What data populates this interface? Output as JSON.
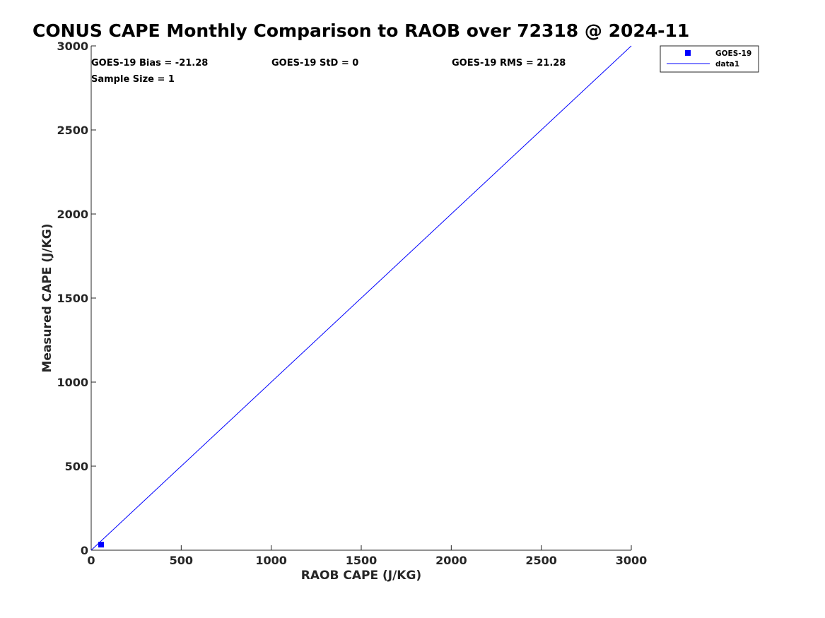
{
  "chart_data": {
    "type": "scatter",
    "title": "CONUS CAPE Monthly Comparison to RAOB over 72318 @ 2024-11",
    "xlabel": "RAOB CAPE (J/KG)",
    "ylabel": "Measured CAPE (J/KG)",
    "xlim": [
      0,
      3000
    ],
    "ylim": [
      0,
      3000
    ],
    "xticks": [
      0,
      500,
      1000,
      1500,
      2000,
      2500,
      3000
    ],
    "yticks": [
      0,
      500,
      1000,
      1500,
      2000,
      2500,
      3000
    ],
    "grid": false,
    "legend_position": "top-right",
    "series": [
      {
        "name": "GOES-19",
        "kind": "scatter",
        "marker": "square",
        "color": "#0000ff",
        "points": [
          {
            "x": 55,
            "y": 33
          }
        ]
      },
      {
        "name": "data1",
        "kind": "line",
        "color": "#0000ff",
        "points": [
          {
            "x": 0,
            "y": 0
          },
          {
            "x": 3000,
            "y": 3000
          }
        ]
      }
    ],
    "annotations": {
      "bias": "GOES-19 Bias = -21.28",
      "std": "GOES-19 StD = 0",
      "rms": "GOES-19 RMS = 21.28",
      "sample_size": "Sample Size = 1"
    }
  }
}
